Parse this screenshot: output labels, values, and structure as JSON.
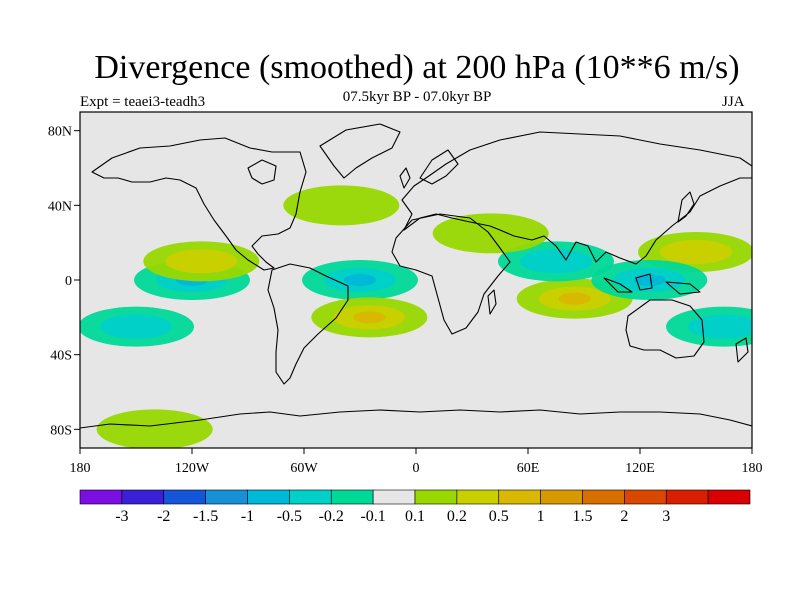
{
  "title": "Divergence (smoothed) at 200 hPa (10**6 m/s)",
  "subtitle": "07.5kyr BP - 07.0kyr BP",
  "experiment": "Expt = teaei3-teadh3",
  "season": "JJA",
  "chart_data": {
    "type": "heatmap",
    "title": "Divergence (smoothed) at 200 hPa (10**6 m/s)",
    "xlabel": "",
    "ylabel": "",
    "xlim": [
      -180,
      180
    ],
    "ylim": [
      -90,
      90
    ],
    "x_ticks": [
      {
        "value": -180,
        "label": "180"
      },
      {
        "value": -120,
        "label": "120W"
      },
      {
        "value": -60,
        "label": "60W"
      },
      {
        "value": 0,
        "label": "0"
      },
      {
        "value": 60,
        "label": "60E"
      },
      {
        "value": 120,
        "label": "120E"
      },
      {
        "value": 180,
        "label": "180"
      }
    ],
    "y_ticks": [
      {
        "value": 80,
        "label": "80N"
      },
      {
        "value": 40,
        "label": "40N"
      },
      {
        "value": 0,
        "label": "0"
      },
      {
        "value": -40,
        "label": "40S"
      },
      {
        "value": -80,
        "label": "80S"
      }
    ],
    "colorbar": {
      "colors": [
        "#7b0ee0",
        "#3a20d8",
        "#1555d8",
        "#1890d8",
        "#00b8d8",
        "#00d0c8",
        "#00d898",
        "#e6e6e6",
        "#98d800",
        "#c8d000",
        "#d8b800",
        "#d89800",
        "#d87000",
        "#d84800",
        "#d82000",
        "#d80000"
      ],
      "labels": [
        "-3",
        "-2",
        "-1.5",
        "-1",
        "-0.5",
        "-0.2",
        "-0.1",
        "0.1",
        "0.2",
        "0.5",
        "1",
        "1.5",
        "2",
        "3"
      ]
    },
    "features": [
      {
        "name": "north-atlantic-positive",
        "lon": -40,
        "lat": 40,
        "value": 0.3
      },
      {
        "name": "tropical-atlantic-negative",
        "lon": -30,
        "lat": 0,
        "value": -1.0
      },
      {
        "name": "south-atlantic-positive",
        "lon": -25,
        "lat": -20,
        "value": 1.0
      },
      {
        "name": "east-pacific-negative",
        "lon": -120,
        "lat": 0,
        "value": -1.0
      },
      {
        "name": "east-pacific-positive",
        "lon": -115,
        "lat": 10,
        "value": 0.6
      },
      {
        "name": "south-pacific-negative",
        "lon": -150,
        "lat": -25,
        "value": -0.5
      },
      {
        "name": "indian-ocean-positive",
        "lon": 85,
        "lat": -10,
        "value": 1.0
      },
      {
        "name": "indian-ocean-negative",
        "lon": 75,
        "lat": 10,
        "value": -0.5
      },
      {
        "name": "west-pacific-positive",
        "lon": 150,
        "lat": 15,
        "value": 0.5
      },
      {
        "name": "maritime-continent-negative",
        "lon": 125,
        "lat": 0,
        "value": -1.0
      },
      {
        "name": "south-west-pacific-negative",
        "lon": 165,
        "lat": -25,
        "value": -0.5
      },
      {
        "name": "africa-positive",
        "lon": 40,
        "lat": 25,
        "value": 0.3
      },
      {
        "name": "southern-ocean-positive",
        "lon": -140,
        "lat": -80,
        "value": 0.3
      }
    ]
  }
}
